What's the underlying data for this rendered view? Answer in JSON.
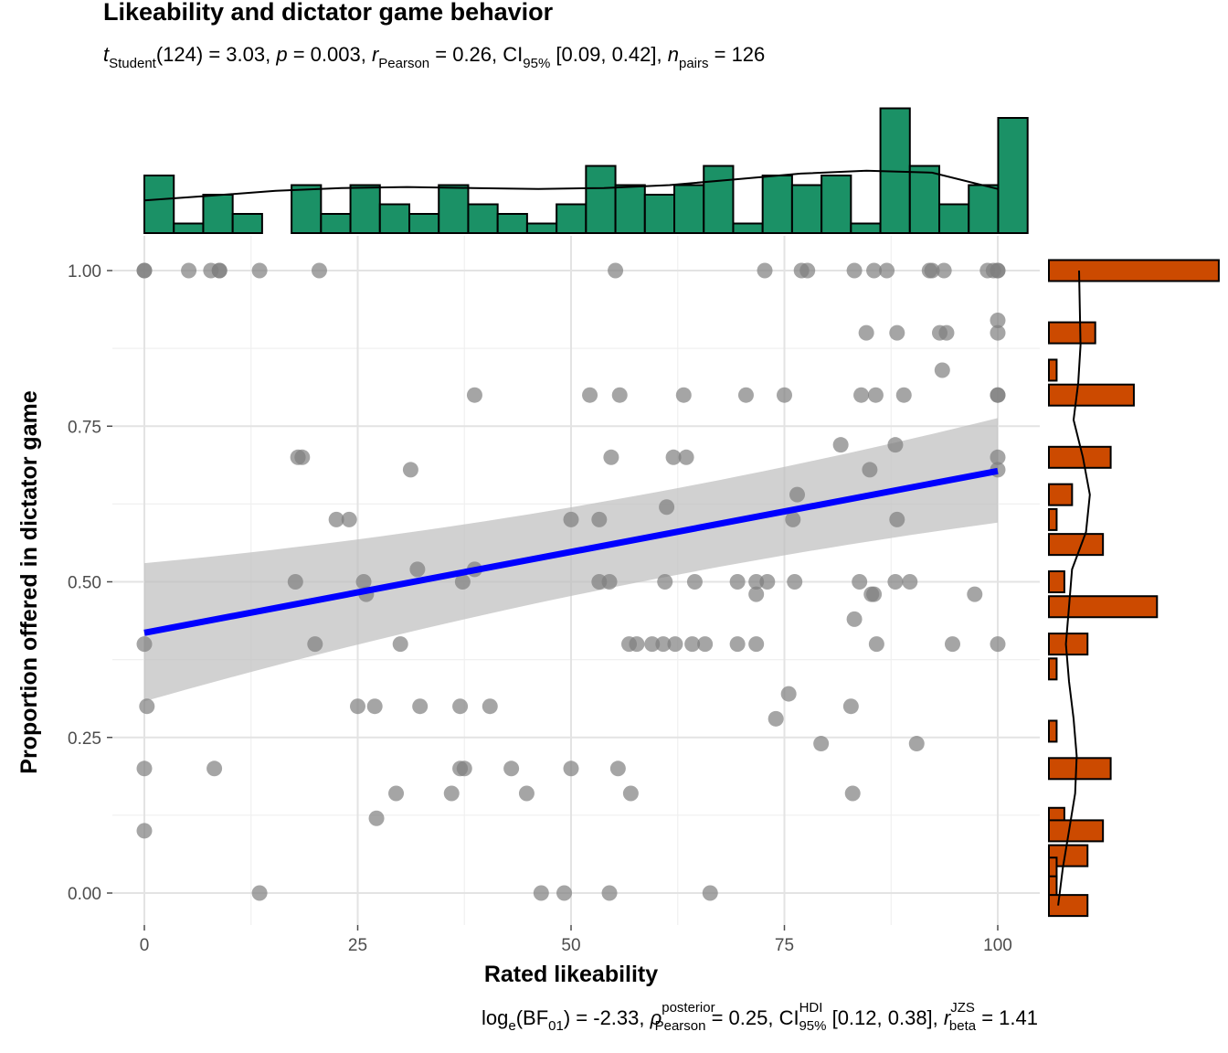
{
  "chart_data": {
    "type": "scatter",
    "title": "Likeability and dictator game behavior",
    "subtitle": {
      "t_label": "t",
      "t_sub": "Student",
      "t_text": "(124) = 3.03, ",
      "p_label": "p",
      "p_text": " = 0.003, ",
      "r_label": "r",
      "r_sub": "Pearson",
      "r_text": " = 0.26, CI",
      "ci_sub": "95%",
      "ci_text": " [0.09, 0.42], ",
      "n_label": "n",
      "n_sub": "pairs",
      "n_text": " = 126"
    },
    "caption": {
      "log_text": "log",
      "log_sub": "e",
      "bf_text": "(BF",
      "bf_sub": "01",
      "bf_val": ") = -2.33, ",
      "rho_label": "ρ",
      "rho_sup": "posterior",
      "rho_sub": "Pearson",
      "rho_text": " = 0.25, CI",
      "ci_sup": "HDI",
      "ci_sub": "95%",
      "ci_text": " [0.12, 0.38], ",
      "r_label": "r",
      "r_sup": "JZS",
      "r_sub": "beta",
      "r_text": " = 1.41"
    },
    "xlabel": "Rated likeability",
    "ylabel": "Proportion offered in dictator game",
    "xlim": [
      -2.5,
      105
    ],
    "ylim": [
      -0.05,
      1.04
    ],
    "x_ticks": [
      "0",
      "25",
      "50",
      "75",
      "100"
    ],
    "y_ticks": [
      "0.00",
      "0.25",
      "0.50",
      "0.75",
      "1.00"
    ],
    "grid": true,
    "points": [
      {
        "x": 0,
        "y": 1.0
      },
      {
        "x": 0,
        "y": 1.0
      },
      {
        "x": 5.2,
        "y": 1.0
      },
      {
        "x": 7.8,
        "y": 1.0
      },
      {
        "x": 8.8,
        "y": 1.0
      },
      {
        "x": 8.8,
        "y": 1.0
      },
      {
        "x": 13.5,
        "y": 1.0
      },
      {
        "x": 20.5,
        "y": 1.0
      },
      {
        "x": 55.2,
        "y": 1.0
      },
      {
        "x": 72.7,
        "y": 1.0
      },
      {
        "x": 77.0,
        "y": 1.0
      },
      {
        "x": 77.7,
        "y": 1.0
      },
      {
        "x": 83.2,
        "y": 1.0
      },
      {
        "x": 85.5,
        "y": 1.0
      },
      {
        "x": 87.0,
        "y": 1.0
      },
      {
        "x": 92.0,
        "y": 1.0
      },
      {
        "x": 92.3,
        "y": 1.0
      },
      {
        "x": 93.7,
        "y": 1.0
      },
      {
        "x": 98.8,
        "y": 1.0
      },
      {
        "x": 99.5,
        "y": 1.0
      },
      {
        "x": 100,
        "y": 1.0
      },
      {
        "x": 100,
        "y": 1.0
      },
      {
        "x": 100,
        "y": 0.92
      },
      {
        "x": 84.6,
        "y": 0.9
      },
      {
        "x": 88.2,
        "y": 0.9
      },
      {
        "x": 93.2,
        "y": 0.9
      },
      {
        "x": 94.0,
        "y": 0.9
      },
      {
        "x": 100,
        "y": 0.9
      },
      {
        "x": 93.5,
        "y": 0.84
      },
      {
        "x": 38.7,
        "y": 0.8
      },
      {
        "x": 52.2,
        "y": 0.8
      },
      {
        "x": 55.7,
        "y": 0.8
      },
      {
        "x": 63.2,
        "y": 0.8
      },
      {
        "x": 70.5,
        "y": 0.8
      },
      {
        "x": 75.0,
        "y": 0.8
      },
      {
        "x": 84.0,
        "y": 0.8
      },
      {
        "x": 85.7,
        "y": 0.8
      },
      {
        "x": 89.0,
        "y": 0.8
      },
      {
        "x": 100,
        "y": 0.8
      },
      {
        "x": 100,
        "y": 0.8
      },
      {
        "x": 81.6,
        "y": 0.72
      },
      {
        "x": 88.0,
        "y": 0.72
      },
      {
        "x": 18.0,
        "y": 0.7
      },
      {
        "x": 18.5,
        "y": 0.7
      },
      {
        "x": 54.7,
        "y": 0.7
      },
      {
        "x": 62.0,
        "y": 0.7
      },
      {
        "x": 63.5,
        "y": 0.7
      },
      {
        "x": 100,
        "y": 0.7
      },
      {
        "x": 31.2,
        "y": 0.68
      },
      {
        "x": 85.0,
        "y": 0.68
      },
      {
        "x": 100,
        "y": 0.68
      },
      {
        "x": 76.5,
        "y": 0.64
      },
      {
        "x": 61.2,
        "y": 0.62
      },
      {
        "x": 22.5,
        "y": 0.6
      },
      {
        "x": 24.0,
        "y": 0.6
      },
      {
        "x": 50.0,
        "y": 0.6
      },
      {
        "x": 53.3,
        "y": 0.6
      },
      {
        "x": 76.0,
        "y": 0.6
      },
      {
        "x": 88.2,
        "y": 0.6
      },
      {
        "x": 32.0,
        "y": 0.52
      },
      {
        "x": 38.7,
        "y": 0.52
      },
      {
        "x": 17.7,
        "y": 0.5
      },
      {
        "x": 25.7,
        "y": 0.5
      },
      {
        "x": 37.3,
        "y": 0.5
      },
      {
        "x": 53.3,
        "y": 0.5
      },
      {
        "x": 54.5,
        "y": 0.5
      },
      {
        "x": 61.0,
        "y": 0.5
      },
      {
        "x": 64.5,
        "y": 0.5
      },
      {
        "x": 69.5,
        "y": 0.5
      },
      {
        "x": 71.7,
        "y": 0.5
      },
      {
        "x": 73.0,
        "y": 0.5
      },
      {
        "x": 76.2,
        "y": 0.5
      },
      {
        "x": 83.8,
        "y": 0.5
      },
      {
        "x": 88.0,
        "y": 0.5
      },
      {
        "x": 89.7,
        "y": 0.5
      },
      {
        "x": 26.0,
        "y": 0.48
      },
      {
        "x": 71.7,
        "y": 0.48
      },
      {
        "x": 85.2,
        "y": 0.48
      },
      {
        "x": 85.5,
        "y": 0.48
      },
      {
        "x": 97.3,
        "y": 0.48
      },
      {
        "x": 83.2,
        "y": 0.44
      },
      {
        "x": 0,
        "y": 0.4
      },
      {
        "x": 20.0,
        "y": 0.4
      },
      {
        "x": 30.0,
        "y": 0.4
      },
      {
        "x": 56.8,
        "y": 0.4
      },
      {
        "x": 57.7,
        "y": 0.4
      },
      {
        "x": 59.5,
        "y": 0.4
      },
      {
        "x": 60.8,
        "y": 0.4
      },
      {
        "x": 62.2,
        "y": 0.4
      },
      {
        "x": 64.2,
        "y": 0.4
      },
      {
        "x": 65.7,
        "y": 0.4
      },
      {
        "x": 69.5,
        "y": 0.4
      },
      {
        "x": 71.7,
        "y": 0.4
      },
      {
        "x": 85.8,
        "y": 0.4
      },
      {
        "x": 94.7,
        "y": 0.4
      },
      {
        "x": 100,
        "y": 0.4
      },
      {
        "x": 75.5,
        "y": 0.32
      },
      {
        "x": 0.3,
        "y": 0.3
      },
      {
        "x": 25.0,
        "y": 0.3
      },
      {
        "x": 27.0,
        "y": 0.3
      },
      {
        "x": 32.3,
        "y": 0.3
      },
      {
        "x": 37.0,
        "y": 0.3
      },
      {
        "x": 40.5,
        "y": 0.3
      },
      {
        "x": 82.8,
        "y": 0.3
      },
      {
        "x": 74.0,
        "y": 0.28
      },
      {
        "x": 79.3,
        "y": 0.24
      },
      {
        "x": 90.5,
        "y": 0.24
      },
      {
        "x": 0,
        "y": 0.2
      },
      {
        "x": 8.2,
        "y": 0.2
      },
      {
        "x": 37.0,
        "y": 0.2
      },
      {
        "x": 37.5,
        "y": 0.2
      },
      {
        "x": 43.0,
        "y": 0.2
      },
      {
        "x": 50.0,
        "y": 0.2
      },
      {
        "x": 55.5,
        "y": 0.2
      },
      {
        "x": 29.5,
        "y": 0.16
      },
      {
        "x": 36.0,
        "y": 0.16
      },
      {
        "x": 44.8,
        "y": 0.16
      },
      {
        "x": 57.0,
        "y": 0.16
      },
      {
        "x": 83.0,
        "y": 0.16
      },
      {
        "x": 27.2,
        "y": 0.12
      },
      {
        "x": 0,
        "y": 0.1
      },
      {
        "x": 13.5,
        "y": 0.0
      },
      {
        "x": 46.5,
        "y": 0.0
      },
      {
        "x": 49.2,
        "y": 0.0
      },
      {
        "x": 54.5,
        "y": 0.0
      },
      {
        "x": 66.3,
        "y": 0.0
      }
    ],
    "regression": {
      "x": [
        0,
        100
      ],
      "y": [
        0.418,
        0.678
      ],
      "ci_lower": [
        0.308,
        0.595
      ],
      "ci_upper": [
        0.53,
        0.763
      ],
      "line_color": "#0000ff",
      "band_color": "#bebebe"
    },
    "point_color": "#7f7f7f",
    "x_histogram": {
      "color": "#1b9166",
      "bin_width": 3.45,
      "x_start": 0,
      "counts": [
        6,
        1,
        4,
        2,
        0,
        5,
        2,
        5,
        3,
        2,
        5,
        3,
        2,
        1,
        3,
        7,
        5,
        4,
        5,
        7,
        1,
        6,
        5,
        6,
        1,
        13,
        7,
        3,
        5,
        12
      ],
      "density_y": [
        3.4,
        3.9,
        4.4,
        4.7,
        4.8,
        4.7,
        4.6,
        4.7,
        5.0,
        5.6,
        6.2,
        6.5,
        6.3,
        4.6
      ]
    },
    "y_histogram": {
      "color": "#cc4a00",
      "bins": [
        {
          "y": 1.0,
          "count": 22
        },
        {
          "y": 0.9,
          "count": 6
        },
        {
          "y": 0.84,
          "count": 1
        },
        {
          "y": 0.8,
          "count": 11
        },
        {
          "y": 0.7,
          "count": 8
        },
        {
          "y": 0.64,
          "count": 3
        },
        {
          "y": 0.6,
          "count": 1
        },
        {
          "y": 0.56,
          "count": 7
        },
        {
          "y": 0.5,
          "count": 2
        },
        {
          "y": 0.46,
          "count": 14
        },
        {
          "y": 0.4,
          "count": 5
        },
        {
          "y": 0.36,
          "count": 1
        },
        {
          "y": 0.26,
          "count": 1
        },
        {
          "y": 0.2,
          "count": 8
        },
        {
          "y": 0.12,
          "count": 2
        },
        {
          "y": 0.1,
          "count": 7
        },
        {
          "y": 0.06,
          "count": 5
        },
        {
          "y": 0.04,
          "count": 1
        },
        {
          "y": 0.01,
          "count": 1
        },
        {
          "y": -0.02,
          "count": 5
        }
      ],
      "density_x": [
        1.2,
        1.8,
        2.6,
        3.4,
        3.6,
        3.2,
        2.6,
        2.2,
        2.6,
        3.0,
        4.8,
        5.3,
        4.4,
        3.2,
        3.8,
        4.1,
        4.0,
        3.9
      ]
    }
  }
}
